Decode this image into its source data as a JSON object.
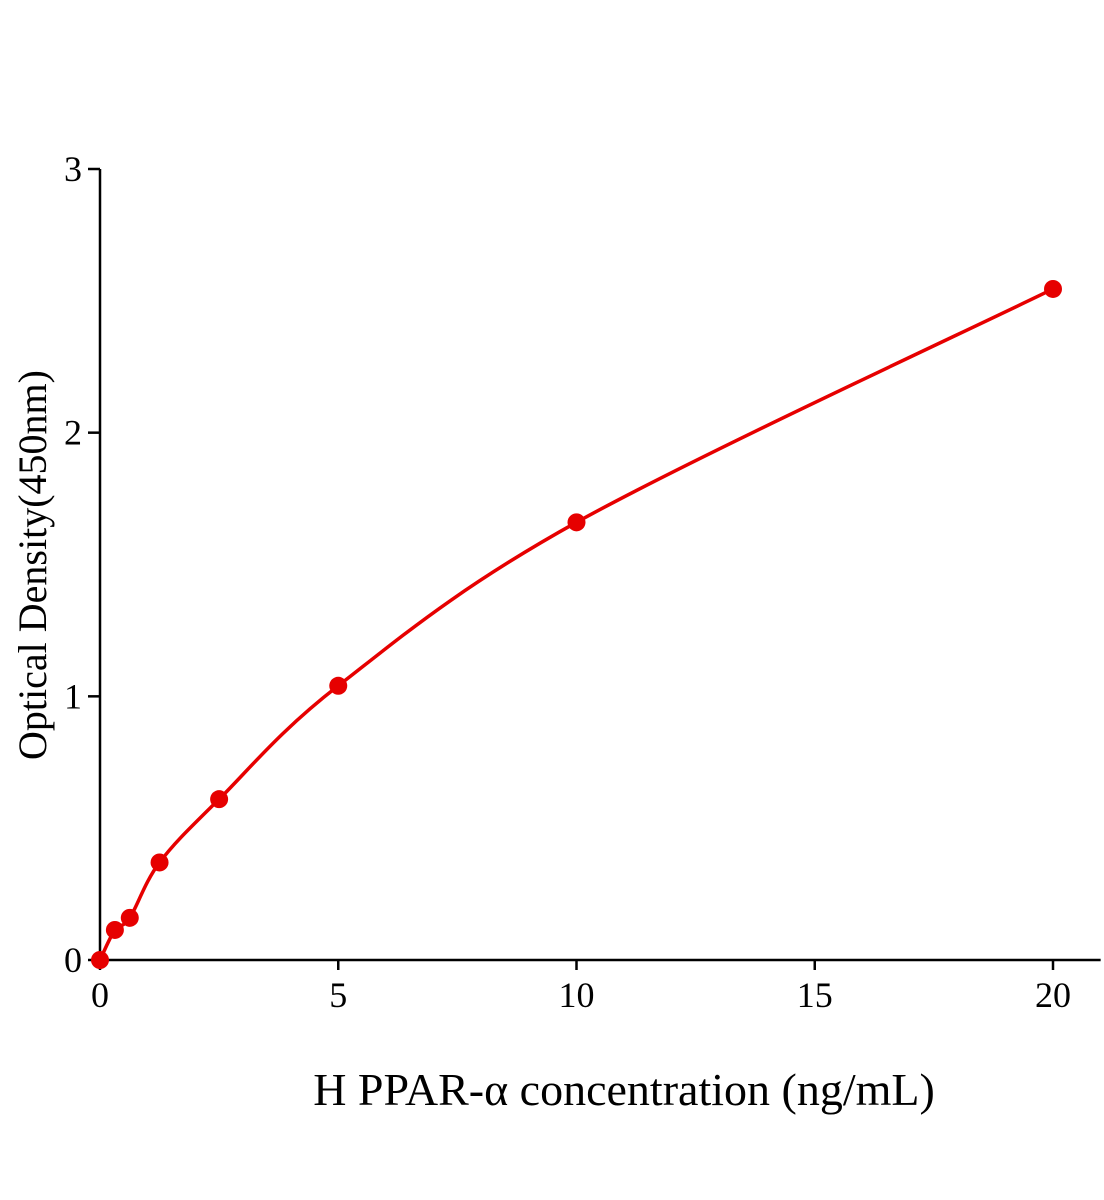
{
  "chart_data": {
    "type": "scatter",
    "title": "",
    "xlabel": "H PPAR-α concentration (ng/mL)",
    "ylabel": "Optical Density(450nm)",
    "xlim": [
      0,
      21
    ],
    "ylim": [
      0,
      3
    ],
    "xticks": [
      0,
      5,
      10,
      15,
      20
    ],
    "yticks": [
      0,
      1,
      2,
      3
    ],
    "grid": false,
    "color": "#e60000",
    "fit_line": true,
    "series": [
      {
        "x": [
          0,
          0.3125,
          0.625,
          1.25,
          2.5,
          5,
          10,
          20
        ],
        "y": [
          0.0,
          0.114,
          0.16,
          0.37,
          0.61,
          1.04,
          1.66,
          2.545
        ]
      }
    ]
  }
}
